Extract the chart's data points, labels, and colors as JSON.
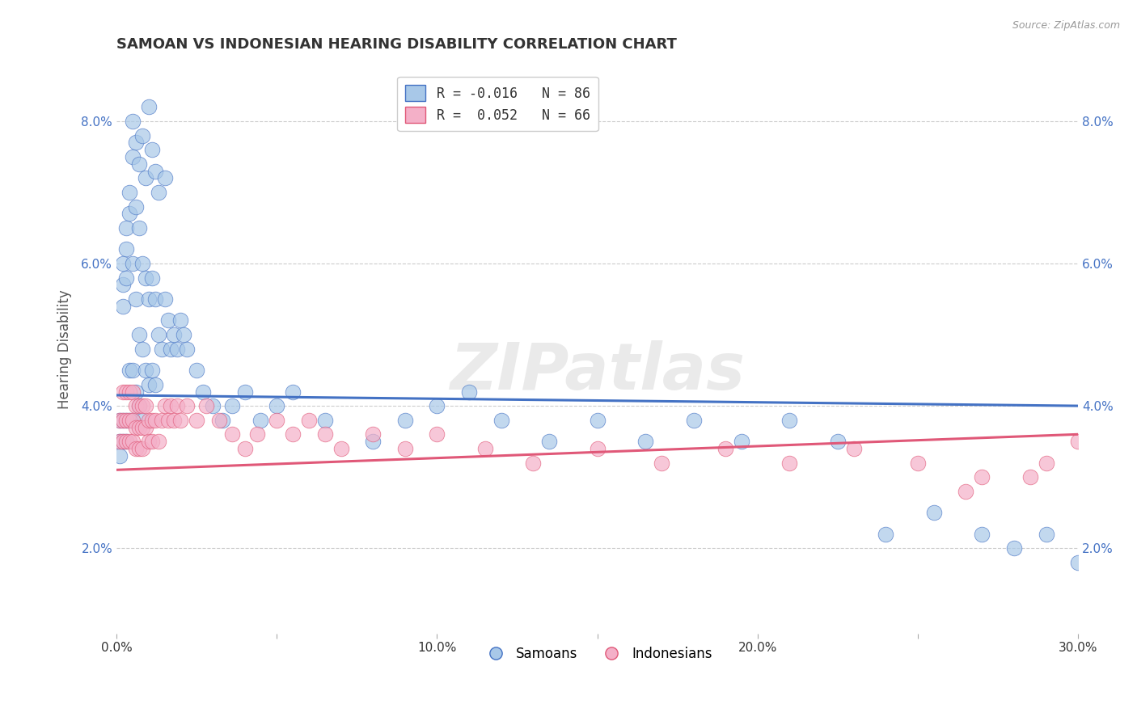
{
  "title": "SAMOAN VS INDONESIAN HEARING DISABILITY CORRELATION CHART",
  "source_text": "Source: ZipAtlas.com",
  "ylabel": "Hearing Disability",
  "xlim": [
    0.0,
    0.3
  ],
  "ylim": [
    0.008,
    0.088
  ],
  "yticks": [
    0.02,
    0.04,
    0.06,
    0.08
  ],
  "ytick_labels": [
    "2.0%",
    "4.0%",
    "6.0%",
    "8.0%"
  ],
  "xticks": [
    0.0,
    0.05,
    0.1,
    0.15,
    0.2,
    0.25,
    0.3
  ],
  "xtick_labels": [
    "0.0%",
    "",
    "10.0%",
    "",
    "20.0%",
    "",
    "30.0%"
  ],
  "blue_R": -0.016,
  "blue_N": 86,
  "pink_R": 0.052,
  "pink_N": 66,
  "legend_label_blue": "R = -0.016   N = 86",
  "legend_label_pink": "R =  0.052   N = 66",
  "samoan_legend": "Samoans",
  "indonesian_legend": "Indonesians",
  "blue_color": "#a8c8e8",
  "pink_color": "#f4b0c8",
  "blue_line_color": "#4472c4",
  "pink_line_color": "#e05878",
  "watermark": "ZIPatlas",
  "background_color": "#ffffff",
  "samoans_x": [
    0.001,
    0.001,
    0.001,
    0.002,
    0.002,
    0.002,
    0.002,
    0.002,
    0.003,
    0.003,
    0.003,
    0.003,
    0.003,
    0.004,
    0.004,
    0.004,
    0.004,
    0.005,
    0.005,
    0.005,
    0.005,
    0.006,
    0.006,
    0.006,
    0.007,
    0.007,
    0.007,
    0.008,
    0.008,
    0.008,
    0.009,
    0.009,
    0.01,
    0.01,
    0.011,
    0.011,
    0.012,
    0.012,
    0.013,
    0.014,
    0.015,
    0.016,
    0.017,
    0.018,
    0.019,
    0.02,
    0.021,
    0.022,
    0.025,
    0.027,
    0.03,
    0.033,
    0.036,
    0.04,
    0.045,
    0.05,
    0.055,
    0.065,
    0.08,
    0.09,
    0.1,
    0.11,
    0.12,
    0.135,
    0.15,
    0.165,
    0.18,
    0.195,
    0.21,
    0.225,
    0.24,
    0.255,
    0.27,
    0.28,
    0.29,
    0.3,
    0.005,
    0.006,
    0.007,
    0.008,
    0.009,
    0.01,
    0.011,
    0.012,
    0.013,
    0.015
  ],
  "samoans_y": [
    0.038,
    0.035,
    0.033,
    0.06,
    0.057,
    0.054,
    0.038,
    0.035,
    0.065,
    0.062,
    0.058,
    0.038,
    0.035,
    0.07,
    0.067,
    0.045,
    0.038,
    0.075,
    0.06,
    0.045,
    0.038,
    0.068,
    0.055,
    0.042,
    0.065,
    0.05,
    0.04,
    0.06,
    0.048,
    0.038,
    0.058,
    0.045,
    0.055,
    0.043,
    0.058,
    0.045,
    0.055,
    0.043,
    0.05,
    0.048,
    0.055,
    0.052,
    0.048,
    0.05,
    0.048,
    0.052,
    0.05,
    0.048,
    0.045,
    0.042,
    0.04,
    0.038,
    0.04,
    0.042,
    0.038,
    0.04,
    0.042,
    0.038,
    0.035,
    0.038,
    0.04,
    0.042,
    0.038,
    0.035,
    0.038,
    0.035,
    0.038,
    0.035,
    0.038,
    0.035,
    0.022,
    0.025,
    0.022,
    0.02,
    0.022,
    0.018,
    0.08,
    0.077,
    0.074,
    0.078,
    0.072,
    0.082,
    0.076,
    0.073,
    0.07,
    0.072
  ],
  "indonesians_x": [
    0.001,
    0.001,
    0.002,
    0.002,
    0.002,
    0.003,
    0.003,
    0.003,
    0.004,
    0.004,
    0.004,
    0.005,
    0.005,
    0.005,
    0.006,
    0.006,
    0.006,
    0.007,
    0.007,
    0.007,
    0.008,
    0.008,
    0.008,
    0.009,
    0.009,
    0.01,
    0.01,
    0.011,
    0.011,
    0.012,
    0.013,
    0.014,
    0.015,
    0.016,
    0.017,
    0.018,
    0.019,
    0.02,
    0.022,
    0.025,
    0.028,
    0.032,
    0.036,
    0.04,
    0.044,
    0.05,
    0.055,
    0.06,
    0.065,
    0.07,
    0.08,
    0.09,
    0.1,
    0.115,
    0.13,
    0.15,
    0.17,
    0.19,
    0.21,
    0.23,
    0.25,
    0.27,
    0.29,
    0.3,
    0.285,
    0.265
  ],
  "indonesians_y": [
    0.038,
    0.035,
    0.042,
    0.038,
    0.035,
    0.042,
    0.038,
    0.035,
    0.042,
    0.038,
    0.035,
    0.042,
    0.038,
    0.035,
    0.04,
    0.037,
    0.034,
    0.04,
    0.037,
    0.034,
    0.04,
    0.037,
    0.034,
    0.04,
    0.037,
    0.038,
    0.035,
    0.038,
    0.035,
    0.038,
    0.035,
    0.038,
    0.04,
    0.038,
    0.04,
    0.038,
    0.04,
    0.038,
    0.04,
    0.038,
    0.04,
    0.038,
    0.036,
    0.034,
    0.036,
    0.038,
    0.036,
    0.038,
    0.036,
    0.034,
    0.036,
    0.034,
    0.036,
    0.034,
    0.032,
    0.034,
    0.032,
    0.034,
    0.032,
    0.034,
    0.032,
    0.03,
    0.032,
    0.035,
    0.03,
    0.028
  ],
  "blue_line_y_start": 0.0415,
  "blue_line_y_end": 0.04,
  "pink_line_y_start": 0.031,
  "pink_line_y_end": 0.036
}
